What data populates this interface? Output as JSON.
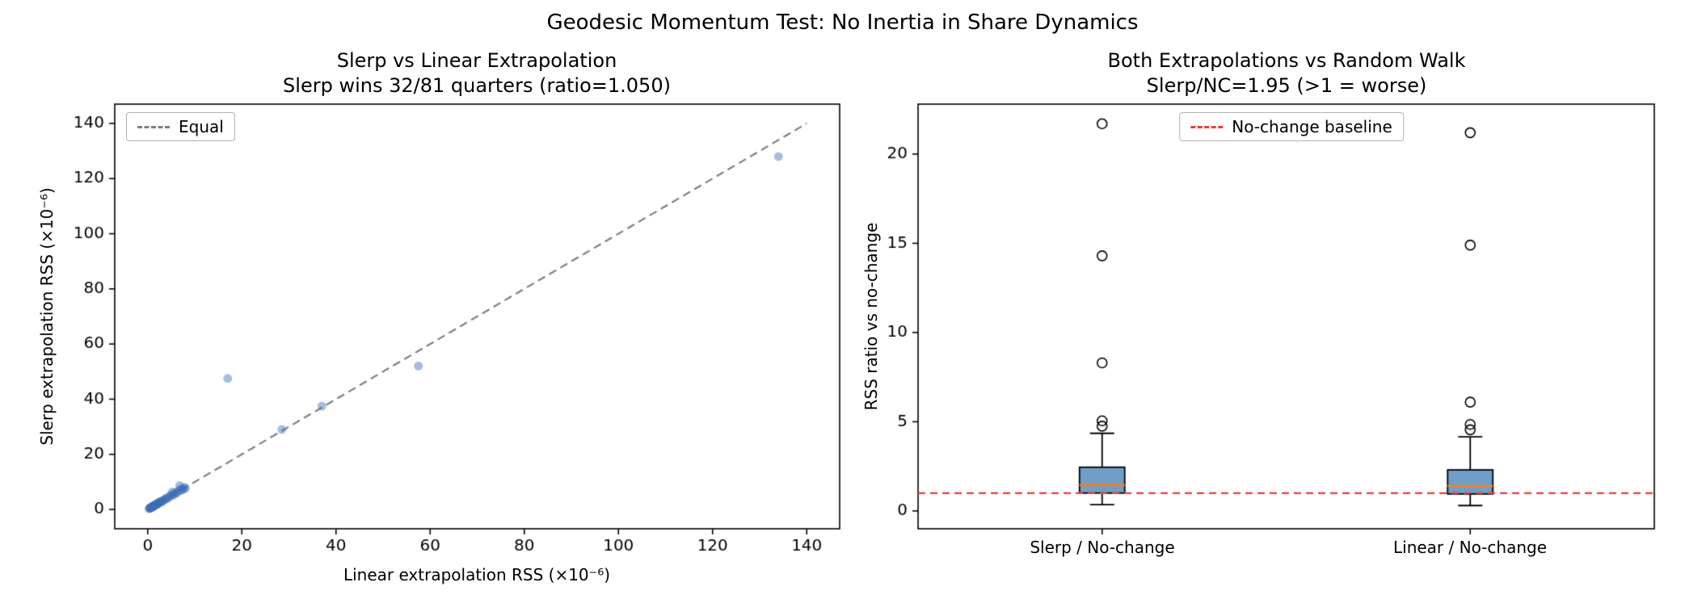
{
  "figure": {
    "suptitle": "Geodesic Momentum Test: No Inertia in Share Dynamics",
    "background_color": "#ffffff"
  },
  "chart_data": [
    {
      "type": "scatter",
      "title_line1": "Slerp vs Linear Extrapolation",
      "title_line2": "Slerp wins 32/81 quarters (ratio=1.050)",
      "xlabel": "Linear extrapolation RSS (×10⁻⁶)",
      "ylabel": "Slerp extrapolation RSS (×10⁻⁶)",
      "legend_label": "Equal",
      "legend_position": "upper left",
      "xlim": [
        -7,
        147
      ],
      "ylim": [
        -7,
        147
      ],
      "xticks": [
        0,
        20,
        40,
        60,
        80,
        100,
        120,
        140
      ],
      "yticks": [
        0,
        20,
        40,
        60,
        80,
        100,
        120,
        140
      ],
      "equal_line": [
        [
          0,
          0
        ],
        [
          140,
          140
        ]
      ],
      "line_color": "#7f7f7f",
      "point_color": "#3b6cb5",
      "point_alpha": 0.45,
      "points": [
        [
          0.3,
          0.3
        ],
        [
          0.4,
          0.5
        ],
        [
          0.5,
          0.4
        ],
        [
          0.6,
          0.6
        ],
        [
          0.7,
          0.8
        ],
        [
          0.8,
          0.7
        ],
        [
          0.9,
          1.0
        ],
        [
          1.0,
          0.9
        ],
        [
          1.1,
          1.2
        ],
        [
          1.2,
          1.1
        ],
        [
          1.3,
          1.4
        ],
        [
          1.4,
          1.3
        ],
        [
          1.5,
          1.6
        ],
        [
          1.6,
          1.5
        ],
        [
          1.7,
          1.8
        ],
        [
          1.8,
          1.7
        ],
        [
          1.9,
          2.0
        ],
        [
          2.0,
          1.9
        ],
        [
          2.1,
          2.2
        ],
        [
          2.2,
          2.1
        ],
        [
          2.3,
          2.5
        ],
        [
          2.5,
          2.4
        ],
        [
          2.6,
          2.8
        ],
        [
          2.8,
          2.7
        ],
        [
          3.0,
          3.1
        ],
        [
          3.2,
          3.0
        ],
        [
          3.5,
          3.6
        ],
        [
          3.8,
          3.7
        ],
        [
          4.0,
          4.2
        ],
        [
          4.3,
          4.1
        ],
        [
          4.6,
          4.8
        ],
        [
          5.0,
          4.9
        ],
        [
          5.2,
          6.3
        ],
        [
          5.3,
          5.5
        ],
        [
          5.6,
          5.4
        ],
        [
          5.9,
          6.1
        ],
        [
          6.2,
          6.0
        ],
        [
          6.5,
          6.8
        ],
        [
          6.8,
          8.7
        ],
        [
          7.0,
          6.9
        ],
        [
          7.2,
          7.6
        ],
        [
          7.5,
          7.2
        ],
        [
          7.8,
          8.0
        ],
        [
          8.0,
          7.7
        ],
        [
          17.0,
          47.5
        ],
        [
          28.5,
          29.0
        ],
        [
          37.0,
          37.5
        ],
        [
          57.5,
          52.0
        ],
        [
          134.0,
          128.0
        ]
      ]
    },
    {
      "type": "box",
      "title_line1": "Both Extrapolations vs Random Walk",
      "title_line2": "Slerp/NC=1.95 (>1 = worse)",
      "ylabel": "RSS ratio vs no-change",
      "legend_label": "No-change baseline",
      "legend_position": "upper center",
      "categories": [
        "Slerp / No-change",
        "Linear / No-change"
      ],
      "ylim": [
        -1.0,
        22.8
      ],
      "yticks": [
        0,
        5,
        10,
        15,
        20
      ],
      "baseline_value": 1.0,
      "baseline_color": "#ef3b3b",
      "box_fill": "#5f93c3",
      "box_edge": "#000000",
      "median_color": "#ff7f0e",
      "boxes": [
        {
          "label": "Slerp / No-change",
          "whisker_low": 0.35,
          "q1": 1.0,
          "median": 1.45,
          "q3": 2.45,
          "whisker_high": 4.35,
          "outliers": [
            4.75,
            5.05,
            8.3,
            14.3,
            21.7
          ]
        },
        {
          "label": "Linear / No-change",
          "whisker_low": 0.3,
          "q1": 0.95,
          "median": 1.4,
          "q3": 2.3,
          "whisker_high": 4.15,
          "outliers": [
            4.55,
            4.85,
            6.1,
            14.9,
            21.2
          ]
        }
      ]
    }
  ]
}
